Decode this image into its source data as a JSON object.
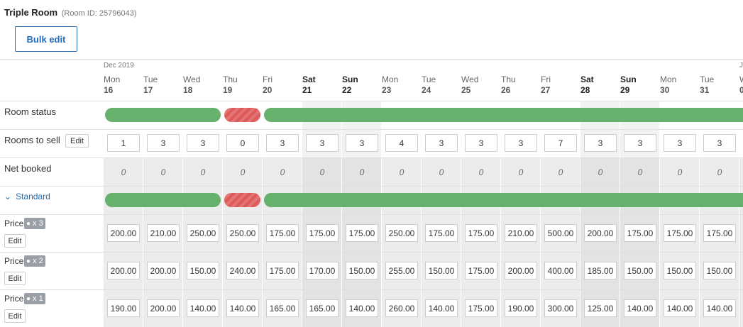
{
  "header": {
    "room_name": "Triple Room",
    "room_id": "(Room ID: 25796043)",
    "bulk_edit": "Bulk edit"
  },
  "calendar": {
    "month": "Dec 2019",
    "next_month_fragment": "J",
    "days": [
      {
        "name": "Mon",
        "date": "16",
        "weekend": false
      },
      {
        "name": "Tue",
        "date": "17",
        "weekend": false
      },
      {
        "name": "Wed",
        "date": "18",
        "weekend": false
      },
      {
        "name": "Thu",
        "date": "19",
        "weekend": false
      },
      {
        "name": "Fri",
        "date": "20",
        "weekend": false
      },
      {
        "name": "Sat",
        "date": "21",
        "weekend": true
      },
      {
        "name": "Sun",
        "date": "22",
        "weekend": true
      },
      {
        "name": "Mon",
        "date": "23",
        "weekend": false
      },
      {
        "name": "Tue",
        "date": "24",
        "weekend": false
      },
      {
        "name": "Wed",
        "date": "25",
        "weekend": false
      },
      {
        "name": "Thu",
        "date": "26",
        "weekend": false
      },
      {
        "name": "Fri",
        "date": "27",
        "weekend": false
      },
      {
        "name": "Sat",
        "date": "28",
        "weekend": true
      },
      {
        "name": "Sun",
        "date": "29",
        "weekend": true
      },
      {
        "name": "Mon",
        "date": "30",
        "weekend": false
      },
      {
        "name": "Tue",
        "date": "31",
        "weekend": false
      },
      {
        "name": "W",
        "date": "0",
        "weekend": false
      }
    ]
  },
  "rows": {
    "room_status": {
      "label": "Room status",
      "status": [
        "open",
        "open",
        "open",
        "closed",
        "open",
        "open",
        "open",
        "open",
        "open",
        "open",
        "open",
        "open",
        "open",
        "open",
        "open",
        "open",
        "open"
      ]
    },
    "rooms_to_sell": {
      "label": "Rooms to sell",
      "edit": "Edit",
      "values": [
        "1",
        "3",
        "3",
        "0",
        "3",
        "3",
        "3",
        "4",
        "3",
        "3",
        "3",
        "7",
        "3",
        "3",
        "3",
        "3"
      ]
    },
    "net_booked": {
      "label": "Net booked",
      "values": [
        "0",
        "0",
        "0",
        "0",
        "0",
        "0",
        "0",
        "0",
        "0",
        "0",
        "0",
        "0",
        "0",
        "0",
        "0",
        "0",
        "0"
      ]
    },
    "standard": {
      "label": "Standard",
      "status": [
        "open",
        "open",
        "open",
        "closed",
        "open",
        "open",
        "open",
        "open",
        "open",
        "open",
        "open",
        "open",
        "open",
        "open",
        "open",
        "open",
        "open"
      ]
    },
    "prices": [
      {
        "label": "Price",
        "occupancy": "x 3",
        "edit": "Edit",
        "values": [
          "200.00",
          "210.00",
          "250.00",
          "250.00",
          "175.00",
          "175.00",
          "175.00",
          "250.00",
          "175.00",
          "175.00",
          "210.00",
          "500.00",
          "200.00",
          "175.00",
          "175.00",
          "175.00"
        ]
      },
      {
        "label": "Price",
        "occupancy": "x 2",
        "edit": "Edit",
        "values": [
          "200.00",
          "200.00",
          "150.00",
          "240.00",
          "175.00",
          "170.00",
          "150.00",
          "255.00",
          "150.00",
          "175.00",
          "200.00",
          "400.00",
          "185.00",
          "150.00",
          "150.00",
          "150.00"
        ]
      },
      {
        "label": "Price",
        "occupancy": "x 1",
        "edit": "Edit",
        "values": [
          "190.00",
          "200.00",
          "140.00",
          "140.00",
          "165.00",
          "165.00",
          "140.00",
          "260.00",
          "140.00",
          "175.00",
          "190.00",
          "300.00",
          "125.00",
          "140.00",
          "140.00",
          "140.00"
        ]
      }
    ]
  },
  "colors": {
    "open": "#66b16b",
    "closed": "#dc5a5a",
    "accent": "#1f6bb5"
  }
}
